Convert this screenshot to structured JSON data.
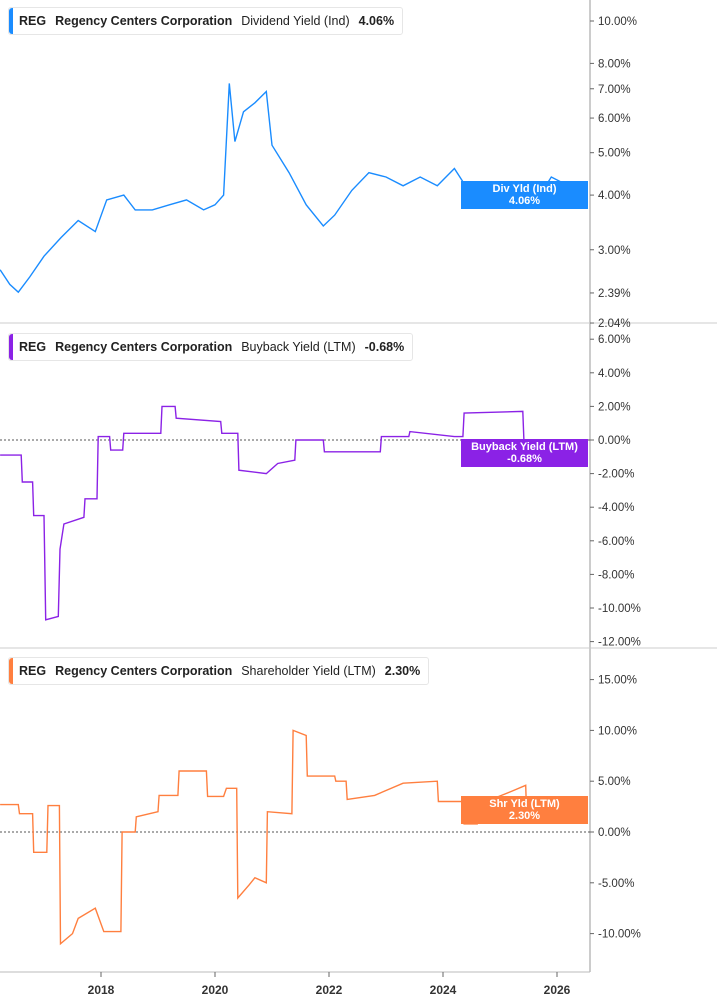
{
  "colors": {
    "dividend": "#1a8cff",
    "buyback": "#8b22e6",
    "shareholder": "#ff7f3f"
  },
  "chart_data": [
    {
      "type": "line",
      "ticker": "REG",
      "company": "Regency Centers Corporation",
      "metric": "Dividend Yield (Ind)",
      "value_label": "4.06%",
      "badge_title": "Div Yld (Ind)",
      "badge_value": "4.06%",
      "yscale": "log",
      "ylim": [
        2.04,
        11
      ],
      "yticks": [
        "10.00%",
        "8.00%",
        "7.00%",
        "6.00%",
        "5.00%",
        "4.00%",
        "3.00%",
        "2.39%",
        "2.04%"
      ],
      "ytick_values": [
        10,
        8,
        7,
        6,
        5,
        4,
        3,
        2.39,
        2.04
      ],
      "points": [
        [
          2016.23,
          2.7
        ],
        [
          2016.4,
          2.5
        ],
        [
          2016.55,
          2.4
        ],
        [
          2016.75,
          2.6
        ],
        [
          2017.0,
          2.9
        ],
        [
          2017.3,
          3.2
        ],
        [
          2017.6,
          3.5
        ],
        [
          2017.9,
          3.3
        ],
        [
          2018.1,
          3.9
        ],
        [
          2018.4,
          4.0
        ],
        [
          2018.6,
          3.7
        ],
        [
          2018.9,
          3.7
        ],
        [
          2019.2,
          3.8
        ],
        [
          2019.5,
          3.9
        ],
        [
          2019.8,
          3.7
        ],
        [
          2020.0,
          3.8
        ],
        [
          2020.15,
          4.0
        ],
        [
          2020.25,
          7.2
        ],
        [
          2020.35,
          5.3
        ],
        [
          2020.5,
          6.2
        ],
        [
          2020.7,
          6.5
        ],
        [
          2020.9,
          6.9
        ],
        [
          2021.0,
          5.2
        ],
        [
          2021.3,
          4.5
        ],
        [
          2021.6,
          3.8
        ],
        [
          2021.9,
          3.4
        ],
        [
          2022.1,
          3.6
        ],
        [
          2022.4,
          4.1
        ],
        [
          2022.7,
          4.5
        ],
        [
          2023.0,
          4.4
        ],
        [
          2023.3,
          4.2
        ],
        [
          2023.6,
          4.4
        ],
        [
          2023.9,
          4.2
        ],
        [
          2024.2,
          4.6
        ],
        [
          2024.5,
          4.0
        ],
        [
          2024.8,
          3.75
        ],
        [
          2025.1,
          4.0
        ],
        [
          2025.4,
          4.2
        ],
        [
          2025.7,
          4.0
        ],
        [
          2025.9,
          4.4
        ],
        [
          2026.05,
          4.3
        ],
        [
          2026.12,
          3.9
        ],
        [
          2026.2,
          4.06
        ]
      ]
    },
    {
      "type": "line",
      "ticker": "REG",
      "company": "Regency Centers Corporation",
      "metric": "Buyback Yield (LTM)",
      "value_label": "-0.68%",
      "badge_title": "Buyback Yield (LTM)",
      "badge_value": "-0.68%",
      "yscale": "linear",
      "ylim": [
        -12,
        6
      ],
      "yticks": [
        "6.00%",
        "4.00%",
        "2.00%",
        "0.00%",
        "-2.00%",
        "-4.00%",
        "-6.00%",
        "-8.00%",
        "-10.00%",
        "-12.00%"
      ],
      "ytick_values": [
        6,
        4,
        2,
        0,
        -2,
        -4,
        -6,
        -8,
        -10,
        -12
      ],
      "points": [
        [
          2016.23,
          -0.9
        ],
        [
          2016.6,
          -0.9
        ],
        [
          2016.62,
          -2.5
        ],
        [
          2016.8,
          -2.5
        ],
        [
          2016.82,
          -4.5
        ],
        [
          2017.0,
          -4.5
        ],
        [
          2017.03,
          -10.7
        ],
        [
          2017.25,
          -10.5
        ],
        [
          2017.28,
          -6.5
        ],
        [
          2017.35,
          -5
        ],
        [
          2017.7,
          -4.6
        ],
        [
          2017.72,
          -3.5
        ],
        [
          2017.93,
          -3.5
        ],
        [
          2017.95,
          0.2
        ],
        [
          2018.15,
          0.2
        ],
        [
          2018.17,
          -0.6
        ],
        [
          2018.38,
          -0.6
        ],
        [
          2018.4,
          0.4
        ],
        [
          2019.05,
          0.4
        ],
        [
          2019.07,
          2.0
        ],
        [
          2019.3,
          2.0
        ],
        [
          2019.32,
          1.3
        ],
        [
          2020.1,
          1.1
        ],
        [
          2020.12,
          0.4
        ],
        [
          2020.4,
          0.4
        ],
        [
          2020.42,
          -1.8
        ],
        [
          2020.9,
          -2.0
        ],
        [
          2021.1,
          -1.4
        ],
        [
          2021.4,
          -1.2
        ],
        [
          2021.42,
          0.0
        ],
        [
          2021.9,
          0.0
        ],
        [
          2021.92,
          -0.7
        ],
        [
          2022.9,
          -0.7
        ],
        [
          2022.92,
          0.2
        ],
        [
          2023.4,
          0.2
        ],
        [
          2023.42,
          0.5
        ],
        [
          2024.2,
          0.2
        ],
        [
          2024.35,
          0.2
        ],
        [
          2024.37,
          1.6
        ],
        [
          2025.4,
          1.7
        ],
        [
          2025.42,
          0.0
        ],
        [
          2025.85,
          0.0
        ],
        [
          2025.87,
          -0.5
        ],
        [
          2026.05,
          -0.5
        ],
        [
          2026.07,
          -0.68
        ],
        [
          2026.2,
          -0.68
        ]
      ]
    },
    {
      "type": "line",
      "ticker": "REG",
      "company": "Regency Centers Corporation",
      "metric": "Shareholder Yield (LTM)",
      "value_label": "2.30%",
      "badge_title": "Shr Yld (LTM)",
      "badge_value": "2.30%",
      "yscale": "linear",
      "ylim": [
        -12.5,
        17
      ],
      "yticks": [
        "15.00%",
        "10.00%",
        "5.00%",
        "0.00%",
        "-5.00%",
        "-10.00%"
      ],
      "ytick_values": [
        15,
        10,
        5,
        0,
        -5,
        -10
      ],
      "points": [
        [
          2016.23,
          2.7
        ],
        [
          2016.55,
          2.7
        ],
        [
          2016.57,
          1.8
        ],
        [
          2016.8,
          1.8
        ],
        [
          2016.82,
          -2.0
        ],
        [
          2017.05,
          -2.0
        ],
        [
          2017.07,
          2.6
        ],
        [
          2017.27,
          2.6
        ],
        [
          2017.29,
          -11.0
        ],
        [
          2017.5,
          -10.0
        ],
        [
          2017.6,
          -8.5
        ],
        [
          2017.9,
          -7.5
        ],
        [
          2018.05,
          -9.8
        ],
        [
          2018.35,
          -9.8
        ],
        [
          2018.37,
          0.0
        ],
        [
          2018.6,
          0.0
        ],
        [
          2018.62,
          1.5
        ],
        [
          2019.0,
          2.0
        ],
        [
          2019.02,
          3.6
        ],
        [
          2019.35,
          3.6
        ],
        [
          2019.37,
          6.0
        ],
        [
          2019.85,
          6.0
        ],
        [
          2019.87,
          3.5
        ],
        [
          2020.15,
          3.5
        ],
        [
          2020.2,
          4.3
        ],
        [
          2020.38,
          4.3
        ],
        [
          2020.4,
          -6.5
        ],
        [
          2020.6,
          -5.2
        ],
        [
          2020.7,
          -4.5
        ],
        [
          2020.9,
          -5.0
        ],
        [
          2020.92,
          2.0
        ],
        [
          2021.35,
          1.8
        ],
        [
          2021.37,
          10.0
        ],
        [
          2021.6,
          9.5
        ],
        [
          2021.62,
          5.5
        ],
        [
          2022.1,
          5.5
        ],
        [
          2022.12,
          5.0
        ],
        [
          2022.3,
          5.0
        ],
        [
          2022.32,
          3.2
        ],
        [
          2022.8,
          3.6
        ],
        [
          2023.3,
          4.8
        ],
        [
          2023.9,
          5.0
        ],
        [
          2023.92,
          3.0
        ],
        [
          2024.35,
          3.0
        ],
        [
          2024.37,
          0.8
        ],
        [
          2024.6,
          0.8
        ],
        [
          2024.62,
          2.7
        ],
        [
          2025.2,
          4.0
        ],
        [
          2025.45,
          4.6
        ],
        [
          2025.47,
          1.2
        ],
        [
          2026.05,
          1.3
        ],
        [
          2026.07,
          2.3
        ],
        [
          2026.2,
          2.3
        ]
      ]
    }
  ],
  "xaxis": {
    "ticks": [
      "2018",
      "2020",
      "2022",
      "2024",
      "2026"
    ],
    "tick_values": [
      2018,
      2020,
      2022,
      2024,
      2026
    ],
    "xlim": [
      2016.23,
      2026.6
    ]
  }
}
